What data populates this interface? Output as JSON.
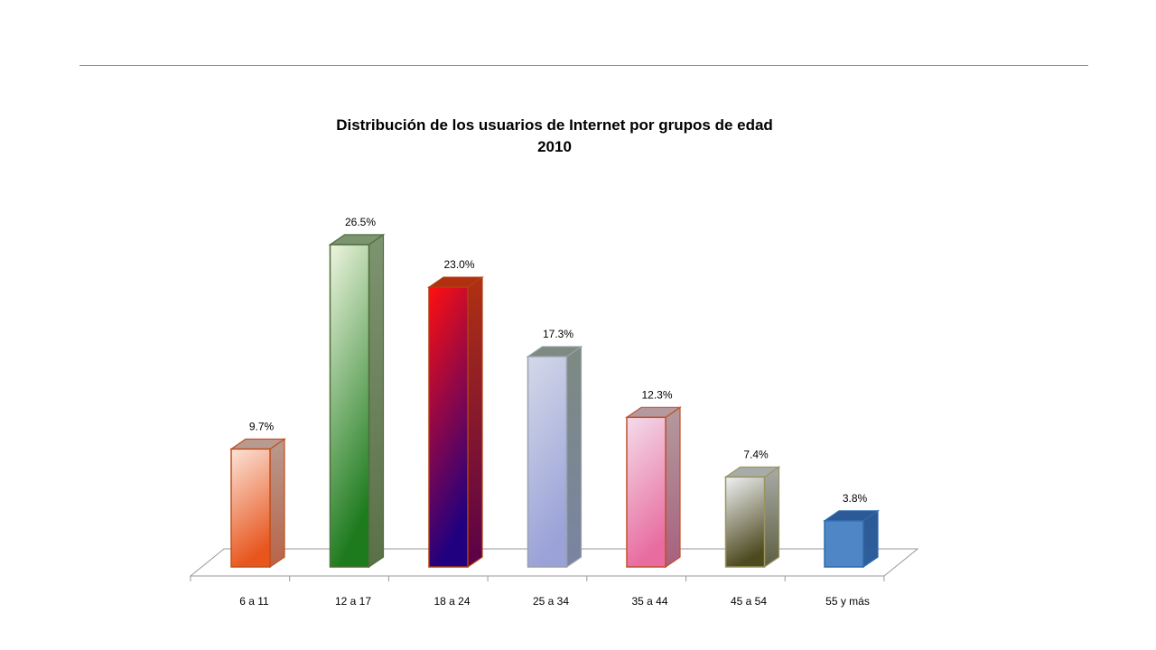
{
  "chart_data": {
    "type": "bar",
    "title": "Distribución de los usuarios de Internet por grupos de edad",
    "subtitle": "2010",
    "categories": [
      "6 a 11",
      "12 a 17",
      "18 a 24",
      "25 a 34",
      "35 a 44",
      "45 a 54",
      "55 y más"
    ],
    "values": [
      9.7,
      26.5,
      23.0,
      17.3,
      12.3,
      7.4,
      3.8
    ],
    "value_labels": [
      "9.7%",
      "26.5%",
      "23.0%",
      "17.3%",
      "12.3%",
      "7.4%",
      "3.8%"
    ],
    "bar_styles": [
      {
        "top": "#fbe3d8",
        "bottom": "#e8561e",
        "side": "#b86448",
        "cap": "#b89a90",
        "border": "#c0501c"
      },
      {
        "top": "#eef5df",
        "bottom": "#1d7a1d",
        "side": "#5a7048",
        "cap": "#7d9470",
        "border": "#4e6e3a"
      },
      {
        "top": "#ff1010",
        "bottom": "#20007f",
        "side": "#5a004a",
        "cap": "#b03010",
        "border": "#b04010"
      },
      {
        "top": "#d4d9e8",
        "bottom": "#9aa2d8",
        "side": "#7a84a4",
        "cap": "#7c8a80",
        "border": "#9aa0b0"
      },
      {
        "top": "#f3dcea",
        "bottom": "#e86ca0",
        "side": "#a8607e",
        "cap": "#b49a9e",
        "border": "#c0502c"
      },
      {
        "top": "#f0f2f4",
        "bottom": "#4e4a20",
        "side": "#5e5e40",
        "cap": "#a8aca8",
        "border": "#9a9460"
      },
      {
        "top": "#4f86c6",
        "bottom": "#4f86c6",
        "side": "#2e5e9c",
        "cap": "#2c5a96",
        "border": "#2e6cae"
      }
    ],
    "ylim": [
      0,
      26.5
    ],
    "grid": false,
    "legend": "none",
    "xlabel": "",
    "ylabel": ""
  }
}
